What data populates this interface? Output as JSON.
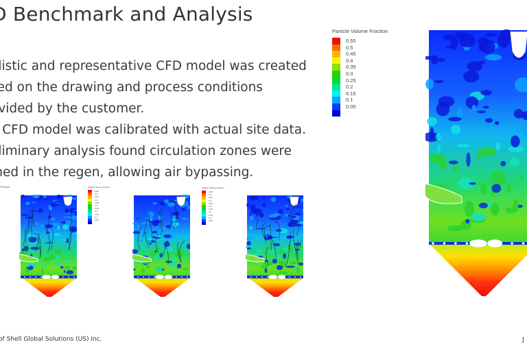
{
  "slide": {
    "title": "D Benchmark and Analysis",
    "bullets": [
      {
        "lines": [
          "alistic and representative CFD model was created",
          "sed on the drawing and process conditions",
          "ovided by the customer."
        ]
      },
      {
        "lines": [
          "e CFD model was calibrated with actual site data."
        ]
      },
      {
        "lines": [
          "eliminary analysis found circulation zones were",
          "med in the regen, allowing air bypassing."
        ]
      }
    ],
    "footer": "of Shell Global Solutions (US) Inc.",
    "page_marker": "J"
  },
  "legend": {
    "title": "Particle Volume Fraction",
    "cut_title": "Fraction",
    "levels": [
      {
        "label": "0.55",
        "color": "#e8110f"
      },
      {
        "label": "0.5",
        "color": "#ff6a00"
      },
      {
        "label": "0.45",
        "color": "#ffb400"
      },
      {
        "label": "0.4",
        "color": "#f5f500"
      },
      {
        "label": "0.35",
        "color": "#8ee000"
      },
      {
        "label": "0.3",
        "color": "#22d400"
      },
      {
        "label": "0.25",
        "color": "#00d83a"
      },
      {
        "label": "0.2",
        "color": "#00e6a0"
      },
      {
        "label": "0.15",
        "color": "#00f0f0"
      },
      {
        "label": "0.1",
        "color": "#00a8ff"
      },
      {
        "label": "0.05",
        "color": "#0040ff"
      },
      {
        "label": "",
        "color": "#0000d0"
      }
    ]
  }
}
